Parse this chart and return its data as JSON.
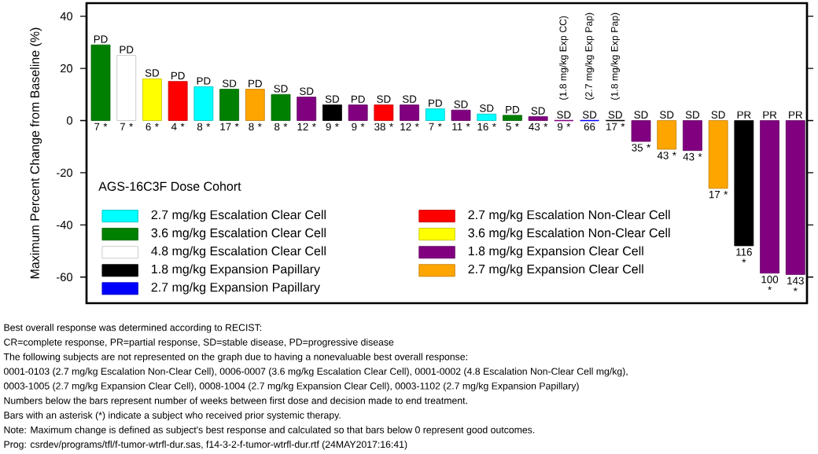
{
  "chart_data": {
    "type": "bar",
    "ylabel": "Maximum Percent Change from Baseline (%)",
    "legend_title": "AGS-16C3F Dose Cohort",
    "legend": "bottom left",
    "categories": [
      "7 *",
      "7 *",
      "6 *",
      "4 *",
      "8 *",
      "17 *",
      "8 *",
      "8 *",
      "12 *",
      "9 *",
      "9 *",
      "38 *",
      "12 *",
      "7 *",
      "11 *",
      "16 *",
      "5 *",
      "43 *",
      "9 *",
      "66",
      "17 *",
      "35 *",
      "43 *",
      "43 *",
      "17 *",
      "116 *",
      "100 *",
      "143 *"
    ],
    "ylim": [
      -70,
      45
    ],
    "yticks": [
      -60,
      -40,
      -20,
      0,
      20,
      40
    ],
    "series": [
      {
        "name": "2.7 mg/kg Escalation Clear Cell",
        "color": "#00ffff",
        "values": [
          null,
          null,
          null,
          null,
          13,
          null,
          null,
          null,
          null,
          null,
          null,
          null,
          null,
          4.5,
          null,
          2.5,
          null,
          null,
          null,
          null,
          null,
          null,
          null,
          null,
          null,
          null,
          null,
          null
        ],
        "value_labels": [
          null,
          null,
          null,
          null,
          "PD",
          null,
          null,
          null,
          null,
          null,
          null,
          null,
          null,
          "PD",
          null,
          "SD",
          null,
          null,
          null,
          null,
          null,
          null,
          null,
          null,
          null,
          null,
          null,
          null
        ]
      },
      {
        "name": "3.6 mg/kg Escalation Clear Cell",
        "color": "#008000",
        "values": [
          29,
          null,
          null,
          null,
          null,
          12,
          null,
          10,
          null,
          null,
          null,
          null,
          null,
          null,
          null,
          null,
          2,
          null,
          null,
          null,
          null,
          null,
          null,
          null,
          null,
          null,
          null,
          null
        ],
        "value_labels": [
          "PD",
          null,
          null,
          null,
          null,
          "SD",
          null,
          "SD",
          null,
          null,
          null,
          null,
          null,
          null,
          null,
          null,
          "PD",
          null,
          null,
          null,
          null,
          null,
          null,
          null,
          null,
          null,
          null,
          null
        ]
      },
      {
        "name": "4.8 mg/kg Escalation Clear Cell",
        "color": "#ffffff",
        "values": [
          null,
          25,
          null,
          null,
          null,
          null,
          null,
          null,
          null,
          null,
          null,
          null,
          null,
          null,
          null,
          null,
          null,
          null,
          null,
          null,
          null,
          null,
          null,
          null,
          null,
          null,
          null,
          null
        ],
        "value_labels": [
          null,
          "PD",
          null,
          null,
          null,
          null,
          null,
          null,
          null,
          null,
          null,
          null,
          null,
          null,
          null,
          null,
          null,
          null,
          null,
          null,
          null,
          null,
          null,
          null,
          null,
          null,
          null,
          null
        ]
      },
      {
        "name": "1.8 mg/kg Expansion Papillary",
        "color": "#000000",
        "values": [
          null,
          null,
          null,
          null,
          null,
          null,
          null,
          null,
          null,
          6,
          null,
          null,
          null,
          null,
          null,
          null,
          null,
          null,
          null,
          null,
          0,
          null,
          null,
          null,
          null,
          -48,
          null,
          null
        ],
        "value_labels": [
          null,
          null,
          null,
          null,
          null,
          null,
          null,
          null,
          null,
          "SD",
          null,
          null,
          null,
          null,
          null,
          null,
          null,
          null,
          null,
          null,
          "SD",
          null,
          null,
          null,
          null,
          "PR",
          null,
          null
        ]
      },
      {
        "name": "2.7 mg/kg Expansion Papillary",
        "color": "#0000ff",
        "values": [
          null,
          null,
          null,
          null,
          null,
          null,
          null,
          null,
          null,
          null,
          null,
          null,
          null,
          null,
          null,
          null,
          null,
          null,
          null,
          0,
          null,
          null,
          null,
          null,
          null,
          null,
          null,
          null
        ],
        "value_labels": [
          null,
          null,
          null,
          null,
          null,
          null,
          null,
          null,
          null,
          null,
          null,
          null,
          null,
          null,
          null,
          null,
          null,
          null,
          null,
          "SD",
          null,
          null,
          null,
          null,
          null,
          null,
          null,
          null
        ]
      },
      {
        "name": "2.7 mg/kg Escalation Non-Clear Cell",
        "color": "#ff0000",
        "values": [
          null,
          null,
          null,
          15,
          null,
          null,
          null,
          null,
          null,
          null,
          null,
          6,
          null,
          null,
          null,
          null,
          null,
          null,
          null,
          null,
          null,
          null,
          null,
          null,
          null,
          null,
          null,
          null
        ],
        "value_labels": [
          null,
          null,
          null,
          "PD",
          null,
          null,
          null,
          null,
          null,
          null,
          null,
          "SD",
          null,
          null,
          null,
          null,
          null,
          null,
          null,
          null,
          null,
          null,
          null,
          null,
          null,
          null,
          null,
          null
        ]
      },
      {
        "name": "3.6 mg/kg Escalation Non-Clear Cell",
        "color": "#ffff00",
        "values": [
          null,
          null,
          16,
          null,
          null,
          null,
          null,
          null,
          null,
          null,
          null,
          null,
          null,
          null,
          null,
          null,
          null,
          null,
          null,
          null,
          null,
          null,
          null,
          null,
          null,
          null,
          null,
          null
        ],
        "value_labels": [
          null,
          null,
          "SD",
          null,
          null,
          null,
          null,
          null,
          null,
          null,
          null,
          null,
          null,
          null,
          null,
          null,
          null,
          null,
          null,
          null,
          null,
          null,
          null,
          null,
          null,
          null,
          null,
          null
        ]
      },
      {
        "name": "1.8 mg/kg Expansion Clear Cell",
        "color": "#800080",
        "values": [
          null,
          null,
          null,
          null,
          null,
          null,
          null,
          null,
          9,
          null,
          6,
          null,
          6,
          null,
          4,
          null,
          null,
          1.5,
          0,
          null,
          null,
          -8,
          null,
          -11.5,
          null,
          null,
          -58.5,
          -59
        ],
        "value_labels": [
          null,
          null,
          null,
          null,
          null,
          null,
          null,
          null,
          "SD",
          null,
          "PD",
          null,
          "SD",
          null,
          "SD",
          null,
          null,
          "SD",
          "SD",
          null,
          null,
          "SD",
          null,
          "SD",
          null,
          null,
          "PR",
          "PR"
        ]
      },
      {
        "name": "2.7 mg/kg Expansion Clear Cell",
        "color": "#ffa500",
        "values": [
          null,
          null,
          null,
          null,
          null,
          null,
          12,
          null,
          null,
          null,
          null,
          null,
          null,
          null,
          null,
          null,
          null,
          null,
          null,
          null,
          null,
          null,
          -11,
          null,
          -26,
          null,
          null,
          null
        ],
        "value_labels": [
          null,
          null,
          null,
          null,
          null,
          null,
          "PD",
          null,
          null,
          null,
          null,
          null,
          null,
          null,
          null,
          null,
          null,
          null,
          null,
          null,
          null,
          null,
          "SD",
          null,
          "SD",
          null,
          null,
          null
        ]
      }
    ],
    "annotations": [
      {
        "text": "(2.7 mg/kg Exp Pap)",
        "x": "66",
        "y": 0
      },
      "(1.8 mg/kg Exp CC)",
      "(1.8 mg/kg Exp Pap)",
      "Best overall response was determined according to RECIST:",
      "CR=complete response, PR=partial response, SD=stable disease, PD=progressive disease",
      "The following subjects are not represented on the graph due to having a nonevaluable best overall response:",
      "0001-0103 (2.7 mg/kg Escalation Non-Clear Cell), 0006-0007 (3.6 mg/kg Escalation Clear Cell), 0001-0002 (4.8 Escalation Non-Clear Cell mg/kg),",
      "0003-1005 (2.7 mg/kg Expansion Clear Cell), 0008-1004 (2.7 mg/kg Expansion Clear Cell), 0003-1102 (2.7 mg/kg Expansion Papillary)",
      "Numbers below the bars represent number of weeks between first dose and decision made to end treatment.",
      "Bars with an asterisk (*) indicate a subject who received prior systemic therapy.",
      "Note: Maximum change is defined as subject's best response and calculated so that bars below 0 represent good outcomes.",
      "Prog: csrdev/programs/tfl/f-tumor-wtrfl-dur.sas, f14-3-2-f-tumor-wtrfl-dur.rtf (24MAY2017:16:41)"
    ]
  }
}
